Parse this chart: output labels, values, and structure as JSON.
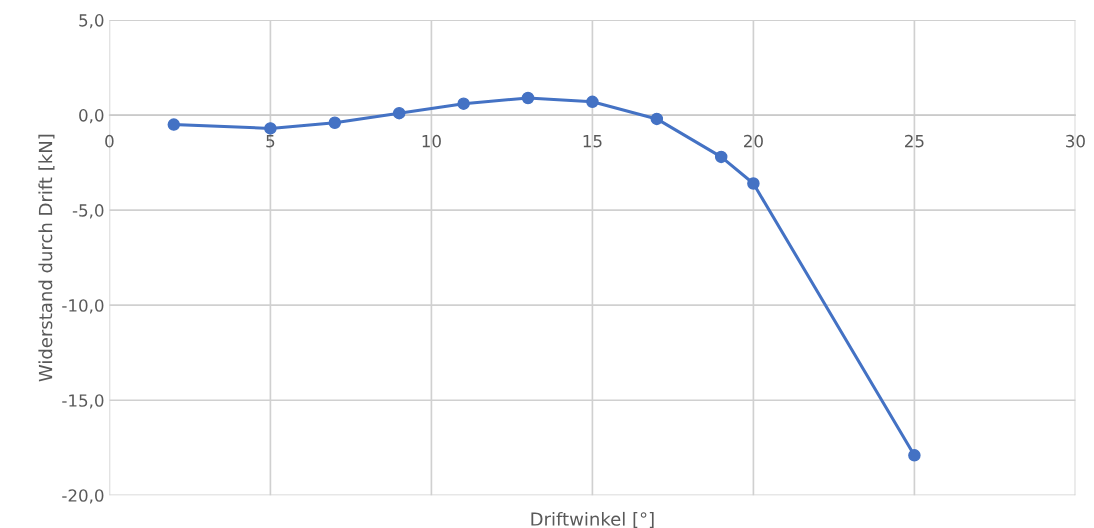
{
  "chart_data": {
    "type": "line",
    "xlabel": "Driftwinkel [°]",
    "ylabel": "Widerstand durch Drift [kN]",
    "x": [
      2,
      5,
      7,
      9,
      11,
      13,
      15,
      17,
      19,
      20,
      25
    ],
    "series": [
      {
        "color": "#4472c4",
        "values": [
          -0.5,
          -0.7,
          -0.4,
          0.1,
          0.6,
          0.9,
          0.7,
          -0.2,
          -2.2,
          -3.6,
          -17.9
        ]
      }
    ],
    "xlim": [
      0,
      30
    ],
    "xticks": [
      0,
      5,
      10,
      15,
      20,
      25,
      30
    ],
    "ylim": [
      -20,
      5
    ],
    "yticks": [
      {
        "value": -20,
        "label": "-20,0"
      },
      {
        "value": -15,
        "label": "-15,0"
      },
      {
        "value": -10,
        "label": "-10,0"
      },
      {
        "value": -5,
        "label": "-5,0"
      },
      {
        "value": 0,
        "label": "0,0"
      },
      {
        "value": 5,
        "label": "5,0"
      }
    ],
    "grid": true,
    "marker": "circle",
    "line_style": "solid"
  }
}
